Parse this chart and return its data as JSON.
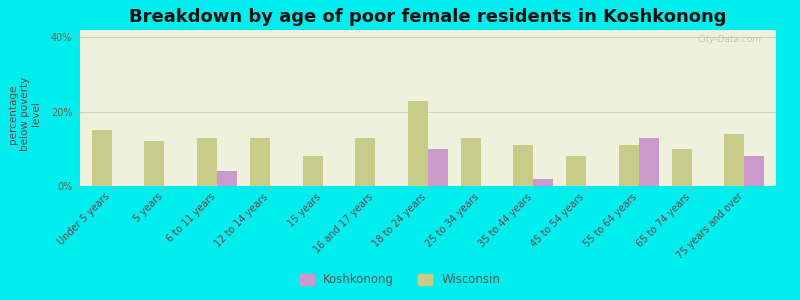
{
  "title": "Breakdown by age of poor female residents in Koshkonong",
  "categories": [
    "Under 5 years",
    "5 years",
    "6 to 11 years",
    "12 to 14 years",
    "15 years",
    "16 and 17 years",
    "18 to 24 years",
    "25 to 34 years",
    "35 to 44 years",
    "45 to 54 years",
    "55 to 64 years",
    "65 to 74 years",
    "75 years and over"
  ],
  "koshkonong": [
    0,
    0,
    4.0,
    0,
    0,
    0,
    10.0,
    0,
    2.0,
    0,
    13.0,
    0,
    8.0
  ],
  "wisconsin": [
    15.0,
    12.0,
    13.0,
    13.0,
    8.0,
    13.0,
    23.0,
    13.0,
    11.0,
    8.0,
    11.0,
    10.0,
    14.0
  ],
  "koshkonong_color": "#cc99cc",
  "wisconsin_color": "#c8cc88",
  "background_color": "#00eeee",
  "plot_bg_color": "#eef2dc",
  "ylabel": "percentage\nbelow poverty\nlevel",
  "ylim": [
    0,
    42
  ],
  "yticks": [
    0,
    20,
    40
  ],
  "ytick_labels": [
    "0%",
    "20%",
    "40%"
  ],
  "grid_color": "#d0d4b8",
  "watermark": "City-Data.com",
  "legend_koshkonong": "Koshkonong",
  "legend_wisconsin": "Wisconsin",
  "title_fontsize": 13,
  "axis_label_fontsize": 7.5,
  "tick_fontsize": 7.0,
  "bar_width": 0.38
}
